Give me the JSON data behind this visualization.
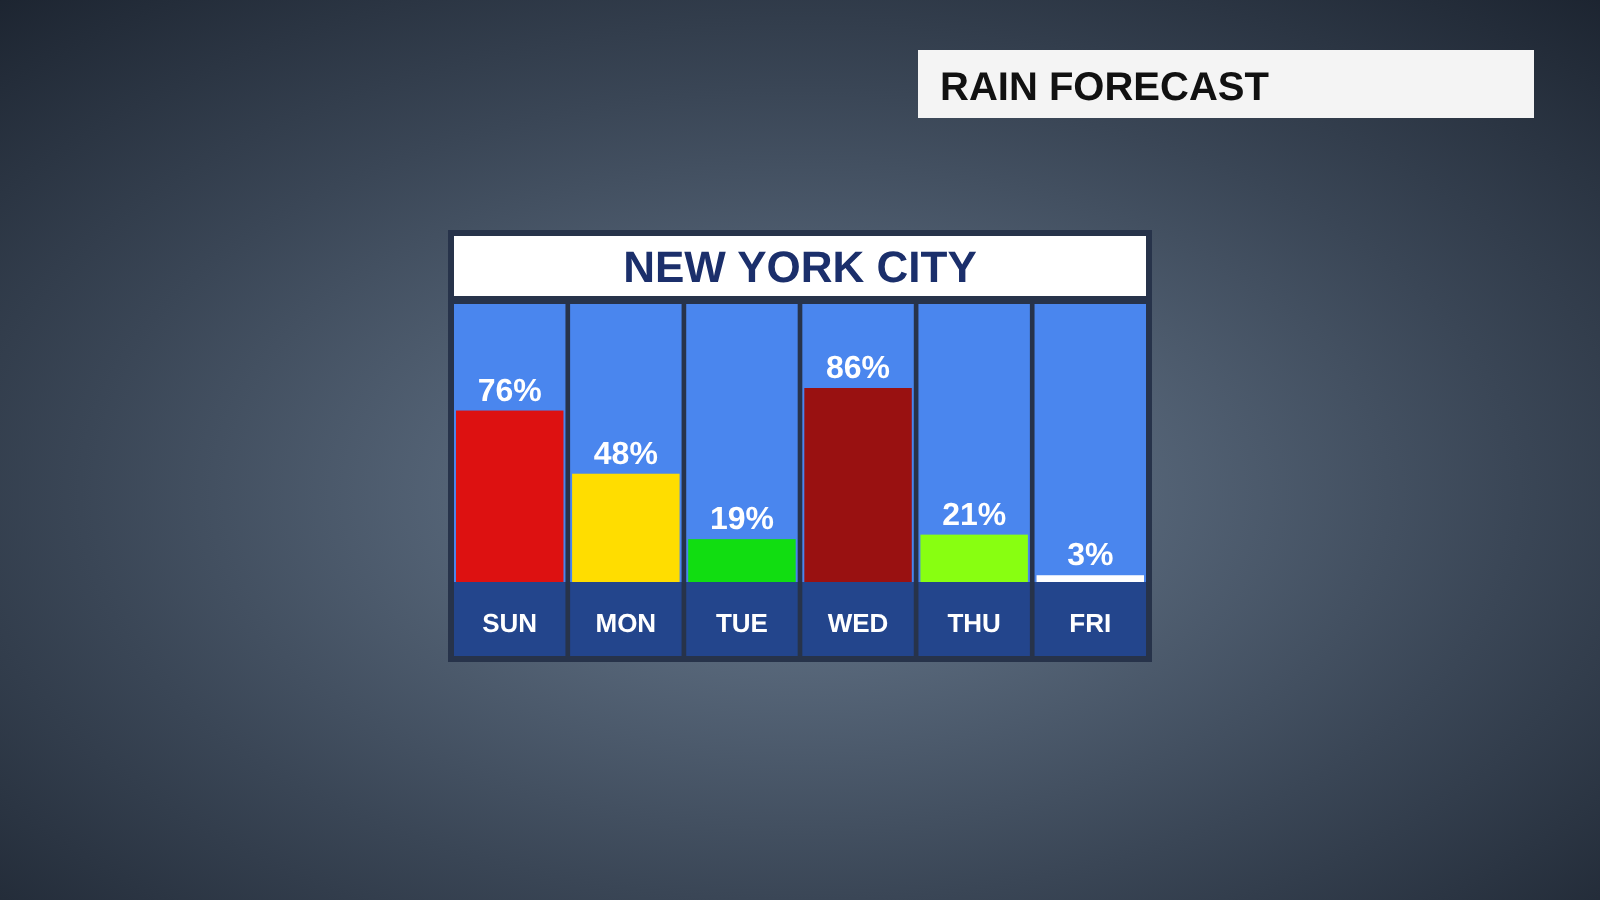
{
  "chart_data": {
    "type": "bar",
    "title": "RAIN FORECAST",
    "subtitle": "NEW YORK CITY",
    "categories": [
      "SUN",
      "MON",
      "TUE",
      "WED",
      "THU",
      "FRI"
    ],
    "values": [
      76,
      48,
      19,
      86,
      21,
      3
    ],
    "value_labels": [
      "76%",
      "48%",
      "19%",
      "86%",
      "21%",
      "3%"
    ],
    "colors": [
      "#dd1111",
      "#ffdd00",
      "#11dd11",
      "#991111",
      "#88ff11",
      "#ffffff"
    ]
  }
}
